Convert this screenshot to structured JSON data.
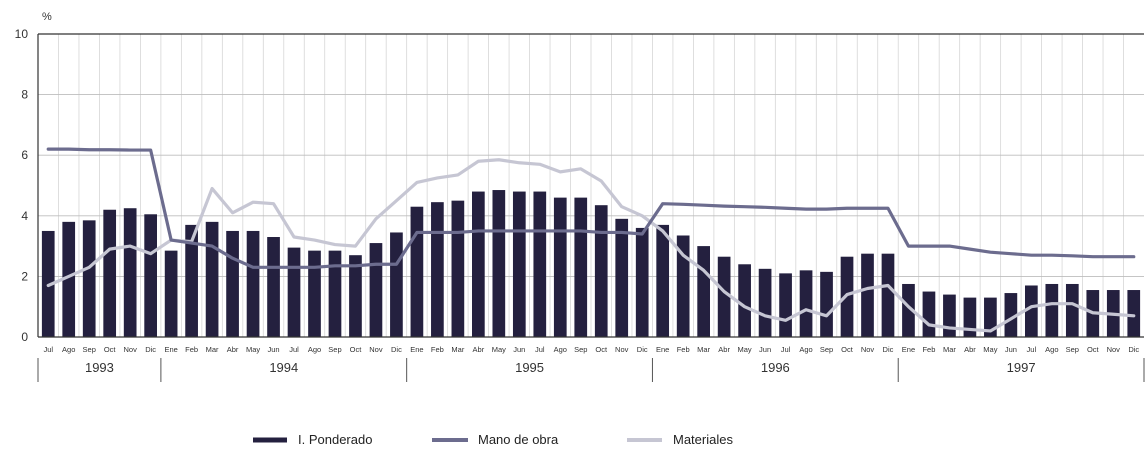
{
  "chart_data": {
    "type": "bar+line",
    "y_unit": "%",
    "ylim": [
      0,
      10
    ],
    "yticks": [
      "0",
      "2",
      "4",
      "6",
      "8",
      "10"
    ],
    "months": [
      "Jul",
      "Ago",
      "Sep",
      "Oct",
      "Nov",
      "Dic",
      "Ene",
      "Feb",
      "Mar",
      "Abr",
      "May",
      "Jun",
      "Jul",
      "Ago",
      "Sep",
      "Oct",
      "Nov",
      "Dic",
      "Ene",
      "Feb",
      "Mar",
      "Abr",
      "May",
      "Jun",
      "Jul",
      "Ago",
      "Sep",
      "Oct",
      "Nov",
      "Dic",
      "Ene",
      "Feb",
      "Mar",
      "Abr",
      "May",
      "Jun",
      "Jul",
      "Ago",
      "Sep",
      "Oct",
      "Nov",
      "Dic",
      "Ene",
      "Feb",
      "Mar",
      "Abr",
      "May",
      "Jun",
      "Jul",
      "Ago",
      "Sep",
      "Oct",
      "Nov",
      "Dic"
    ],
    "years": [
      {
        "label": "1993",
        "months": 6
      },
      {
        "label": "1994",
        "months": 12
      },
      {
        "label": "1995",
        "months": 12
      },
      {
        "label": "1996",
        "months": 12
      },
      {
        "label": "1997",
        "months": 12
      }
    ],
    "grid": true,
    "legend_position": "bottom",
    "series": [
      {
        "name": "I. Ponderado",
        "kind": "bar",
        "color": "#24203f",
        "values": [
          3.5,
          3.8,
          3.85,
          4.2,
          4.25,
          4.05,
          2.85,
          3.7,
          3.8,
          3.5,
          3.5,
          3.3,
          2.95,
          2.85,
          2.85,
          2.7,
          3.1,
          3.45,
          4.3,
          4.45,
          4.5,
          4.8,
          4.85,
          4.8,
          4.8,
          4.6,
          4.6,
          4.35,
          3.9,
          3.6,
          3.7,
          3.35,
          3.0,
          2.65,
          2.4,
          2.25,
          2.1,
          2.2,
          2.15,
          2.65,
          2.75,
          2.75,
          1.75,
          1.5,
          1.4,
          1.3,
          1.3,
          1.45,
          1.7,
          1.75,
          1.75,
          1.55,
          1.55,
          1.55
        ]
      },
      {
        "name": "Mano de obra",
        "kind": "line",
        "color": "#6c6c8e",
        "values": [
          6.2,
          6.2,
          6.18,
          6.18,
          6.17,
          6.17,
          3.2,
          3.1,
          3.0,
          2.6,
          2.3,
          2.3,
          2.3,
          2.3,
          2.35,
          2.35,
          2.4,
          2.4,
          3.45,
          3.45,
          3.45,
          3.5,
          3.5,
          3.5,
          3.5,
          3.5,
          3.5,
          3.45,
          3.45,
          3.4,
          4.4,
          4.38,
          4.35,
          4.32,
          4.3,
          4.28,
          4.25,
          4.22,
          4.22,
          4.25,
          4.25,
          4.25,
          3.0,
          3.0,
          3.0,
          2.9,
          2.8,
          2.75,
          2.7,
          2.7,
          2.68,
          2.65,
          2.65,
          2.65
        ]
      },
      {
        "name": "Materiales",
        "kind": "line",
        "color": "#c6c6d3",
        "values": [
          1.7,
          2.0,
          2.3,
          2.9,
          3.0,
          2.75,
          3.2,
          3.15,
          4.9,
          4.1,
          4.45,
          4.4,
          3.3,
          3.2,
          3.05,
          3.0,
          3.9,
          4.5,
          5.1,
          5.25,
          5.35,
          5.8,
          5.85,
          5.75,
          5.7,
          5.45,
          5.55,
          5.15,
          4.3,
          4.0,
          3.5,
          2.7,
          2.2,
          1.5,
          1.0,
          0.7,
          0.55,
          0.9,
          0.7,
          1.4,
          1.6,
          1.7,
          1.0,
          0.4,
          0.3,
          0.25,
          0.2,
          0.6,
          1.0,
          1.1,
          1.1,
          0.8,
          0.75,
          0.7
        ]
      }
    ]
  }
}
